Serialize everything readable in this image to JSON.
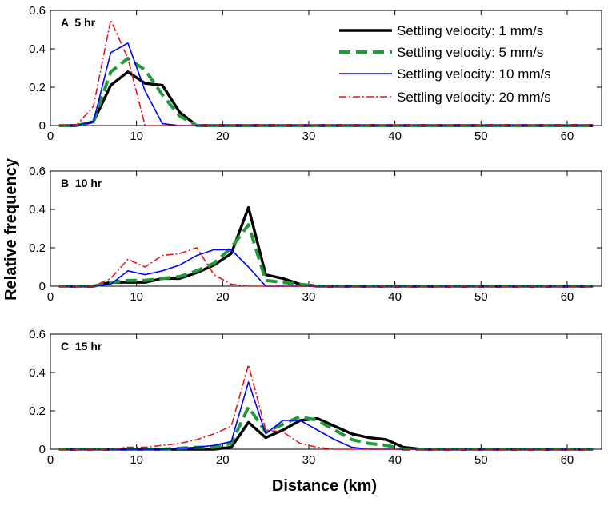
{
  "chart_data": {
    "type": "line",
    "xlabel": "Distance (km)",
    "ylabel": "Relative frequency",
    "xlim": [
      0,
      64
    ],
    "xticks": [
      "0",
      "10",
      "20",
      "30",
      "40",
      "50",
      "60"
    ],
    "ylim": [
      0,
      0.6
    ],
    "yticks": [
      "0",
      "0.2",
      "0.4",
      "0.6"
    ],
    "legend_location": "top-right of panel A",
    "series_names": [
      "Settling velocity: 1 mm/s",
      "Settling velocity: 5 mm/s",
      "Settling velocity: 10 mm/s",
      "Settling velocity: 20 mm/s"
    ],
    "series_colors": [
      "#000000",
      "#1e9a3a",
      "#0000ff",
      "#e8141c"
    ],
    "panels": [
      {
        "label": "A  5 hr",
        "series": [
          {
            "name": "Settling velocity: 1 mm/s",
            "x": [
              1,
              3,
              5,
              7,
              9,
              11,
              13,
              15,
              17,
              19,
              63
            ],
            "y": [
              0,
              0,
              0.02,
              0.21,
              0.28,
              0.22,
              0.21,
              0.07,
              0,
              0,
              0
            ]
          },
          {
            "name": "Settling velocity: 5 mm/s",
            "x": [
              1,
              3,
              5,
              7,
              9,
              11,
              13,
              15,
              17,
              19,
              63
            ],
            "y": [
              0,
              0,
              0.02,
              0.28,
              0.35,
              0.29,
              0.16,
              0.05,
              0,
              0,
              0
            ]
          },
          {
            "name": "Settling velocity: 10 mm/s",
            "x": [
              1,
              3,
              5,
              7,
              9,
              11,
              13,
              15,
              17,
              63
            ],
            "y": [
              0,
              0,
              0.02,
              0.38,
              0.43,
              0.18,
              0.01,
              0,
              0,
              0
            ]
          },
          {
            "name": "Settling velocity: 20 mm/s",
            "x": [
              1,
              3,
              5,
              7,
              9,
              11,
              13,
              63
            ],
            "y": [
              0,
              0,
              0.1,
              0.55,
              0.35,
              0,
              0,
              0
            ]
          }
        ]
      },
      {
        "label": "B  10 hr",
        "series": [
          {
            "name": "Settling velocity: 1 mm/s",
            "x": [
              1,
              5,
              7,
              9,
              11,
              13,
              15,
              17,
              19,
              21,
              23,
              25,
              27,
              29,
              31,
              63
            ],
            "y": [
              0,
              0,
              0.02,
              0.02,
              0.02,
              0.04,
              0.04,
              0.07,
              0.11,
              0.17,
              0.41,
              0.06,
              0.04,
              0.01,
              0,
              0
            ]
          },
          {
            "name": "Settling velocity: 5 mm/s",
            "x": [
              1,
              5,
              7,
              9,
              11,
              13,
              15,
              17,
              19,
              21,
              23,
              25,
              27,
              29,
              31,
              63
            ],
            "y": [
              0,
              0,
              0.02,
              0.03,
              0.03,
              0.04,
              0.05,
              0.08,
              0.12,
              0.2,
              0.32,
              0.03,
              0.02,
              0.01,
              0,
              0
            ]
          },
          {
            "name": "Settling velocity: 10 mm/s",
            "x": [
              1,
              5,
              7,
              9,
              11,
              13,
              15,
              17,
              19,
              21,
              23,
              25,
              27,
              63
            ],
            "y": [
              0,
              0,
              0.01,
              0.08,
              0.06,
              0.08,
              0.11,
              0.16,
              0.19,
              0.19,
              0.1,
              0,
              0,
              0
            ]
          },
          {
            "name": "Settling velocity: 20 mm/s",
            "x": [
              1,
              5,
              7,
              9,
              11,
              13,
              15,
              17,
              19,
              21,
              23,
              25,
              63
            ],
            "y": [
              0,
              0,
              0.04,
              0.14,
              0.1,
              0.16,
              0.17,
              0.2,
              0.06,
              0.01,
              0,
              0,
              0
            ]
          }
        ]
      },
      {
        "label": "C  15 hr",
        "series": [
          {
            "name": "Settling velocity: 1 mm/s",
            "x": [
              1,
              7,
              9,
              13,
              17,
              19,
              21,
              23,
              25,
              27,
              29,
              31,
              33,
              35,
              37,
              39,
              41,
              43,
              63
            ],
            "y": [
              0,
              0,
              0,
              0,
              0,
              0,
              0.01,
              0.14,
              0.06,
              0.1,
              0.15,
              0.16,
              0.12,
              0.08,
              0.06,
              0.05,
              0.01,
              0,
              0
            ]
          },
          {
            "name": "Settling velocity: 5 mm/s",
            "x": [
              1,
              7,
              9,
              13,
              17,
              19,
              21,
              23,
              25,
              27,
              29,
              31,
              33,
              35,
              37,
              39,
              41,
              63
            ],
            "y": [
              0,
              0,
              0,
              0,
              0.01,
              0.01,
              0.03,
              0.22,
              0.09,
              0.13,
              0.17,
              0.15,
              0.1,
              0.05,
              0.03,
              0.02,
              0,
              0
            ]
          },
          {
            "name": "Settling velocity: 10 mm/s",
            "x": [
              1,
              7,
              9,
              13,
              17,
              19,
              21,
              23,
              25,
              27,
              29,
              31,
              33,
              35,
              37,
              39,
              63
            ],
            "y": [
              0,
              0,
              0,
              0,
              0.01,
              0.02,
              0.04,
              0.35,
              0.08,
              0.15,
              0.15,
              0.1,
              0.05,
              0.01,
              0,
              0,
              0
            ]
          },
          {
            "name": "Settling velocity: 20 mm/s",
            "x": [
              1,
              7,
              9,
              11,
              13,
              15,
              17,
              19,
              21,
              23,
              25,
              27,
              29,
              31,
              33,
              35,
              37,
              63
            ],
            "y": [
              0,
              0,
              0.01,
              0.01,
              0.02,
              0.03,
              0.05,
              0.08,
              0.12,
              0.44,
              0.1,
              0.09,
              0.03,
              0.01,
              0,
              0,
              0,
              0
            ]
          }
        ]
      }
    ]
  }
}
